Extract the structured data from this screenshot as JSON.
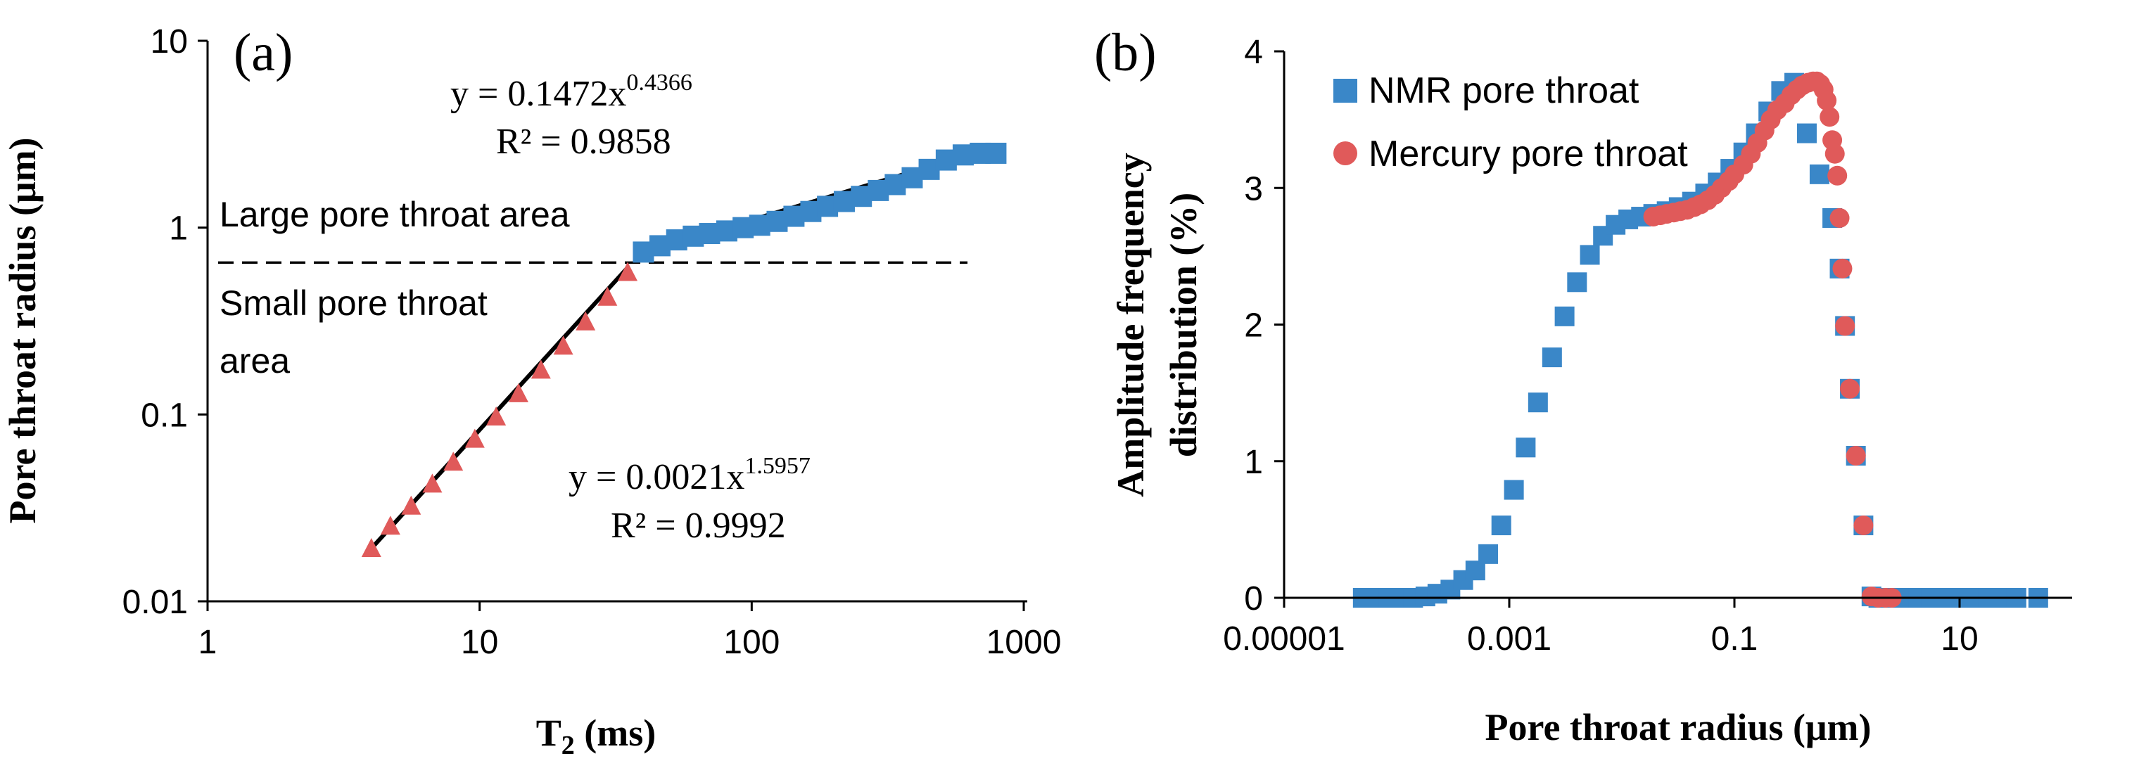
{
  "chart_data": [
    {
      "panel_label": "(a)",
      "type": "scatter",
      "xscale": "log",
      "yscale": "log",
      "xlim": [
        1,
        1000
      ],
      "ylim": [
        0.01,
        10
      ],
      "xlabel": "T",
      "xlabel_sub": "2",
      "xlabel_unit": " (ms)",
      "ylabel": "Pore throat radius (μm)",
      "xticks": [
        1,
        10,
        100,
        1000
      ],
      "xtick_labels": [
        "1",
        "10",
        "100",
        "1000"
      ],
      "yticks": [
        0.01,
        0.1,
        1,
        10
      ],
      "ytick_labels": [
        "0.01",
        "0.1",
        "1",
        "10"
      ],
      "threshold_y": 0.65,
      "series": [
        {
          "name": "Large pore throat",
          "marker": "square",
          "color": "#3a87c8",
          "x": [
            40,
            46,
            53,
            61,
            70,
            81,
            93,
            107,
            124,
            143,
            165,
            190,
            219,
            253,
            292,
            337,
            389,
            449,
            519,
            599,
            692,
            790
          ],
          "y": [
            0.74,
            0.8,
            0.86,
            0.9,
            0.93,
            0.96,
            1.0,
            1.03,
            1.08,
            1.15,
            1.22,
            1.3,
            1.38,
            1.47,
            1.58,
            1.7,
            1.85,
            2.05,
            2.3,
            2.45,
            2.5,
            2.5
          ]
        },
        {
          "name": "Small pore throat",
          "marker": "triangle",
          "color": "#e05a5a",
          "x": [
            4,
            4.7,
            5.6,
            6.7,
            8,
            9.6,
            11.5,
            13.9,
            16.8,
            20.3,
            24.5,
            29.5,
            35
          ],
          "y": [
            0.019,
            0.025,
            0.032,
            0.042,
            0.055,
            0.073,
            0.096,
            0.128,
            0.171,
            0.23,
            0.31,
            0.42,
            0.57
          ]
        }
      ],
      "fits": [
        {
          "a": 0.1472,
          "b": 0.4366,
          "x_range": [
            40,
            800
          ]
        },
        {
          "a": 0.0021,
          "b": 1.5957,
          "x_range": [
            3.9,
            35
          ]
        }
      ],
      "annotations": {
        "large_fit_eq": "y = 0.1472x",
        "large_fit_exp": "0.4366",
        "large_fit_r2": "R² = 0.9858",
        "large_area": "Large pore throat area",
        "small_area_line1": "Small pore throat",
        "small_area_line2": "area",
        "small_fit_eq": "y = 0.0021x",
        "small_fit_exp": "1.5957",
        "small_fit_r2": "R² = 0.9992"
      }
    },
    {
      "panel_label": "(b)",
      "type": "scatter",
      "xscale": "log",
      "xlim": [
        1e-05,
        100
      ],
      "ylim": [
        0,
        4
      ],
      "xlabel": "Pore throat radius (μm)",
      "ylabel_line1": "Amplitude frequency",
      "ylabel_line2": "distribution (%)",
      "xticks": [
        1e-05,
        0.001,
        0.1,
        10
      ],
      "xtick_labels": [
        "0.00001",
        "0.001",
        "0.1",
        "10"
      ],
      "yticks": [
        0,
        1,
        2,
        3,
        4
      ],
      "ytick_labels": [
        "0",
        "1",
        "2",
        "3",
        "4"
      ],
      "legend_position": "top-left",
      "series": [
        {
          "name": "NMR pore throat",
          "marker": "square",
          "color": "#3a87c8",
          "x": [
            5e-05,
            6.5e-05,
            8.5e-05,
            0.00011,
            0.00014,
            0.00018,
            0.00023,
            0.0003,
            0.00039,
            0.0005,
            0.00065,
            0.00085,
            0.0011,
            0.0014,
            0.0018,
            0.0024,
            0.0031,
            0.004,
            0.0052,
            0.0068,
            0.0088,
            0.0114,
            0.0148,
            0.019,
            0.025,
            0.032,
            0.042,
            0.055,
            0.071,
            0.092,
            0.12,
            0.155,
            0.2,
            0.26,
            0.34,
            0.44,
            0.57,
            0.74,
            0.86,
            0.96,
            1.06,
            1.2,
            1.4,
            1.65,
            1.9,
            2.2,
            2.5,
            3.2,
            4.3,
            5.6,
            7.5,
            10,
            13.5,
            18,
            24,
            32,
            50
          ],
          "y": [
            0,
            0,
            0,
            0,
            0,
            0.01,
            0.03,
            0.06,
            0.13,
            0.2,
            0.32,
            0.53,
            0.79,
            1.1,
            1.43,
            1.76,
            2.06,
            2.31,
            2.51,
            2.65,
            2.73,
            2.77,
            2.79,
            2.81,
            2.83,
            2.86,
            2.9,
            2.96,
            3.04,
            3.14,
            3.26,
            3.4,
            3.56,
            3.71,
            3.77,
            3.4,
            3.1,
            2.78,
            2.41,
            1.99,
            1.53,
            1.04,
            0.53,
            0.01,
            0,
            0,
            0,
            0,
            0,
            0,
            0,
            0,
            0,
            0,
            0,
            0,
            0
          ]
        },
        {
          "name": "Mercury pore throat",
          "marker": "circle",
          "color": "#e05a5a",
          "x": [
            0.019,
            0.022,
            0.025,
            0.029,
            0.033,
            0.038,
            0.044,
            0.05,
            0.058,
            0.067,
            0.077,
            0.089,
            0.1,
            0.12,
            0.14,
            0.16,
            0.185,
            0.21,
            0.24,
            0.28,
            0.32,
            0.36,
            0.4,
            0.45,
            0.5,
            0.54,
            0.58,
            0.62,
            0.66,
            0.7,
            0.74,
            0.78,
            0.82,
            0.86,
            0.91,
            0.96,
            1.06,
            1.2,
            1.4,
            1.65,
            1.9,
            2.2,
            2.5
          ],
          "y": [
            2.79,
            2.8,
            2.81,
            2.82,
            2.83,
            2.84,
            2.86,
            2.88,
            2.91,
            2.95,
            3.0,
            3.05,
            3.1,
            3.17,
            3.25,
            3.33,
            3.42,
            3.5,
            3.57,
            3.62,
            3.68,
            3.72,
            3.75,
            3.77,
            3.78,
            3.78,
            3.76,
            3.72,
            3.64,
            3.52,
            3.35,
            3.25,
            3.09,
            2.78,
            2.41,
            1.99,
            1.53,
            1.04,
            0.53,
            0.01,
            0,
            0,
            0
          ]
        }
      ]
    }
  ]
}
